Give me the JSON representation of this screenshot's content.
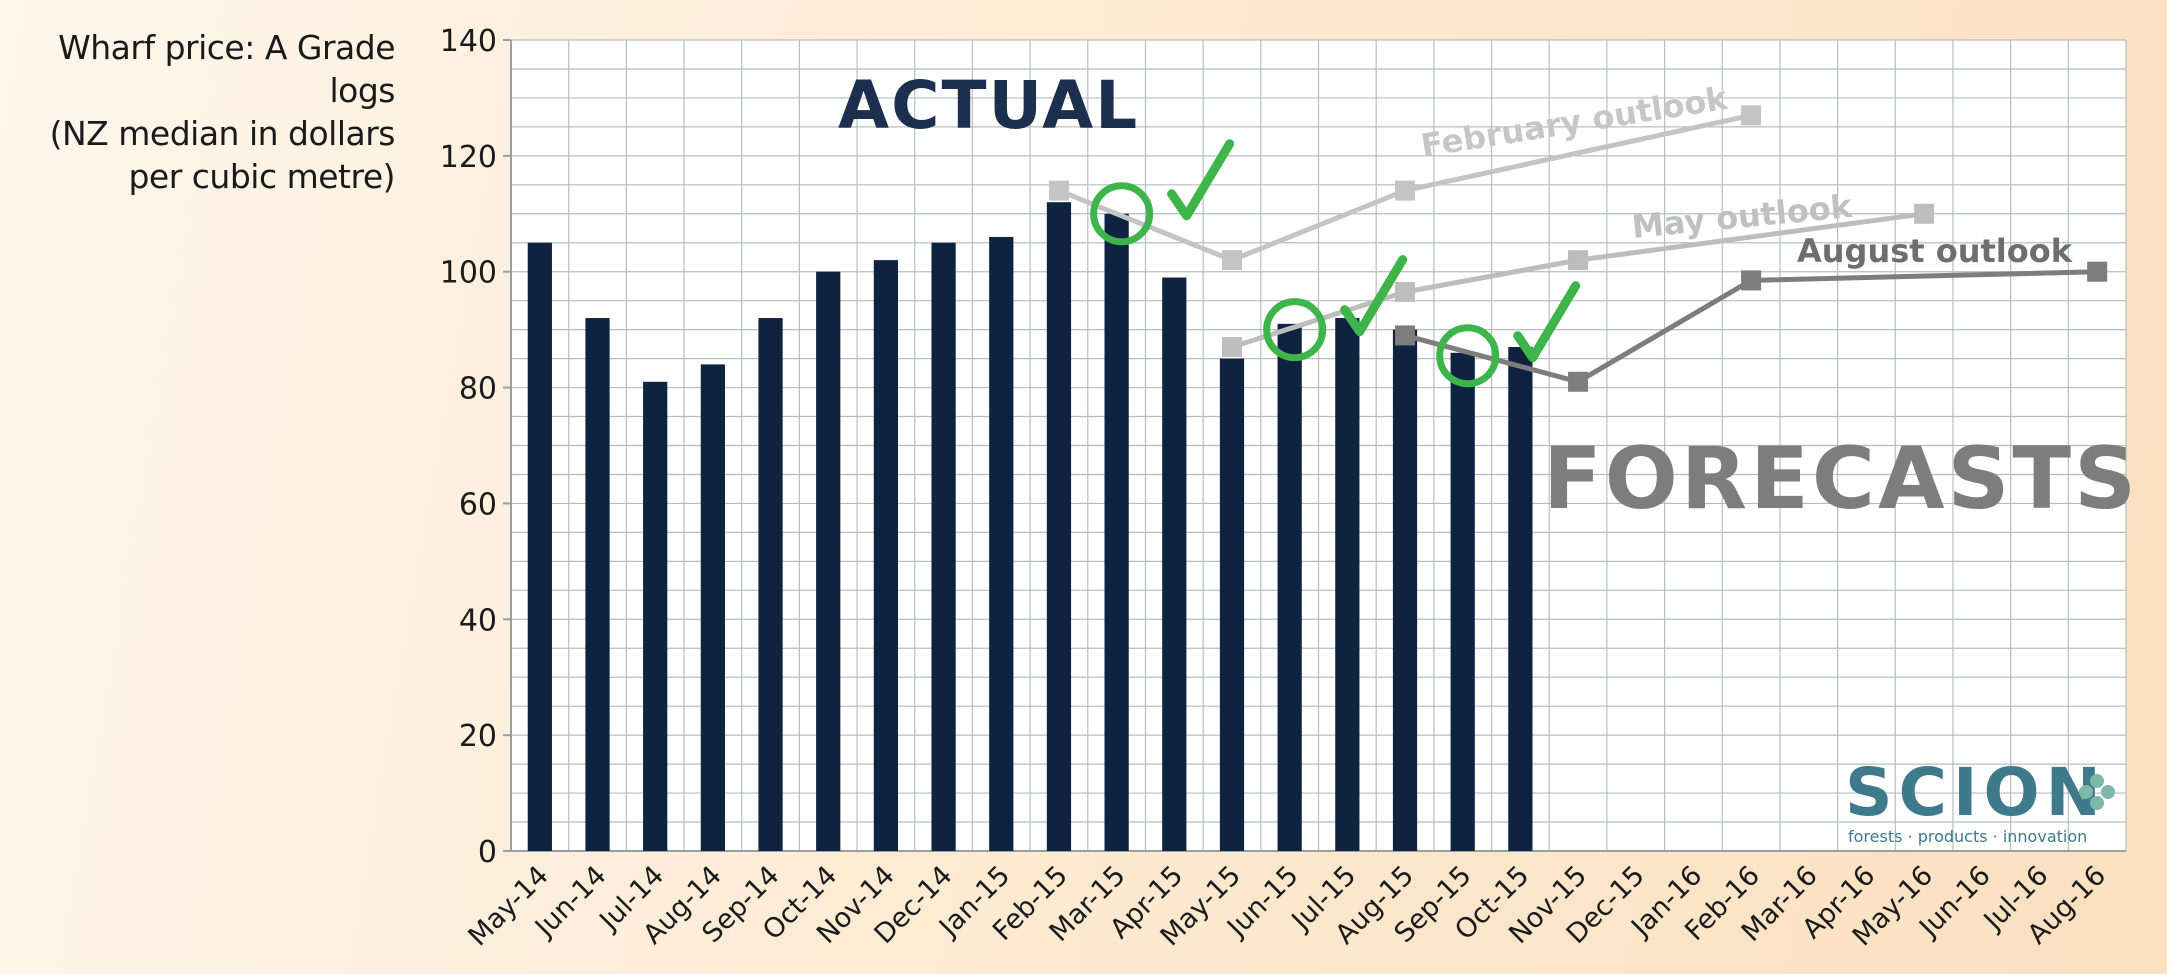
{
  "chart_data": {
    "type": "bar",
    "ylabel_lines": [
      "Wharf price: A Grade logs",
      "(NZ median in dollars",
      "per cubic metre)"
    ],
    "ylim": [
      0,
      140
    ],
    "yticks": [
      0,
      20,
      40,
      60,
      80,
      100,
      120,
      140
    ],
    "grid": true,
    "categories": [
      "May-14",
      "Jun-14",
      "Jul-14",
      "Aug-14",
      "Sep-14",
      "Oct-14",
      "Nov-14",
      "Dec-14",
      "Jan-15",
      "Feb-15",
      "Mar-15",
      "Apr-15",
      "May-15",
      "Jun-15",
      "Jul-15",
      "Aug-15",
      "Sep-15",
      "Oct-15",
      "Nov-15",
      "Dec-15",
      "Jan-16",
      "Feb-16",
      "Mar-16",
      "Apr-16",
      "May-16",
      "Jun-16",
      "Jul-16",
      "Aug-16"
    ],
    "bars": {
      "values": [
        105,
        92,
        81,
        84,
        92,
        100,
        102,
        105,
        106,
        112,
        110,
        99,
        85,
        91,
        92,
        90,
        86,
        87
      ],
      "color": "#0e2340"
    },
    "series": [
      {
        "name": "February outlook",
        "color": "#c4c4c4",
        "points": [
          {
            "x": "Feb-15",
            "y": 114
          },
          {
            "x": "May-15",
            "y": 102
          },
          {
            "x": "Aug-15",
            "y": 114
          },
          {
            "x": "Feb-16",
            "y": 127
          }
        ]
      },
      {
        "name": "May outlook",
        "color": "#bdbdbd",
        "points": [
          {
            "x": "May-15",
            "y": 87
          },
          {
            "x": "Aug-15",
            "y": 96.5
          },
          {
            "x": "Nov-15",
            "y": 102
          },
          {
            "x": "May-16",
            "y": 110
          }
        ]
      },
      {
        "name": "August outlook",
        "color": "#7d7d7d",
        "points": [
          {
            "x": "Aug-15",
            "y": 89
          },
          {
            "x": "Nov-15",
            "y": 81
          },
          {
            "x": "Feb-16",
            "y": 98.5
          },
          {
            "x": "Aug-16",
            "y": 100
          }
        ]
      }
    ],
    "checks": [
      {
        "x": "Mar-15",
        "y": 110
      },
      {
        "x": "Jun-15",
        "y": 90
      },
      {
        "x": "Sep-15",
        "y": 85.5
      }
    ],
    "check_color": "#3db54a",
    "annotations": {
      "actual": "ACTUAL",
      "forecasts": "FORECASTS"
    },
    "logo": {
      "name": "SCION",
      "tagline": "forests · products · innovation",
      "color": "#3e7a8c"
    }
  }
}
